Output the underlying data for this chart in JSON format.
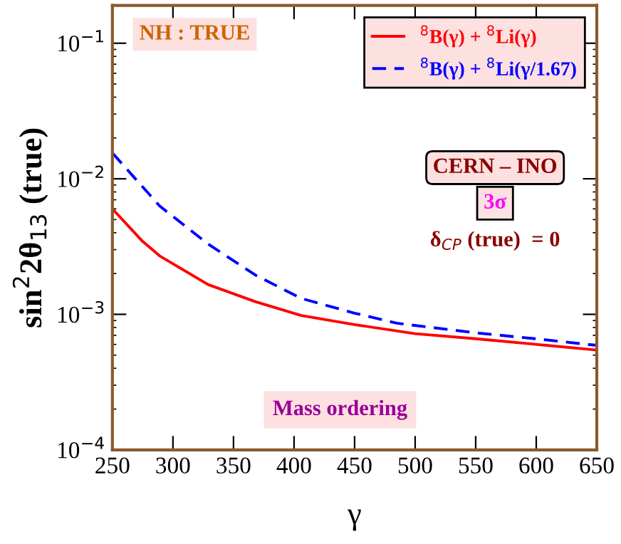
{
  "chart_data": {
    "type": "line",
    "xlabel": "γ",
    "ylabel": "sin$^{2}$2θ$_{13}$ (true)",
    "log": "y",
    "xlim": [
      250,
      650
    ],
    "xticks": [
      250,
      300,
      350,
      400,
      450,
      500,
      550,
      600,
      650
    ],
    "ylim": [
      0.0001,
      0.19
    ],
    "yticks": [
      {
        "value": 0.0001,
        "label": "10$^{−4}$"
      },
      {
        "value": 0.001,
        "label": "10$^{−3}$"
      },
      {
        "value": 0.01,
        "label": "10$^{−2}$"
      },
      {
        "value": 0.1,
        "label": "10$^{−1}$"
      }
    ],
    "grid": false,
    "legend": "top right",
    "series": [
      {
        "name": "$^{8}$B(γ) + $^{8}$Li(γ)",
        "color": "#ff0000",
        "line_style": "solid",
        "x": [
          250,
          275,
          289,
          329,
          368,
          406,
          450,
          500,
          550,
          600,
          650
        ],
        "values": [
          0.006,
          0.00345,
          0.0027,
          0.00166,
          0.00124,
          0.00098,
          0.00084,
          0.00072,
          0.00066,
          0.0006,
          0.000545
        ]
      },
      {
        "name": "$^{8}$B(γ) + $^{8}$Li(γ/1.67)",
        "color": "#0000ff",
        "line_style": "dashed",
        "x": [
          250,
          289,
          329,
          368,
          406,
          450,
          485,
          550,
          600,
          650
        ],
        "values": [
          0.0155,
          0.0063,
          0.0033,
          0.00195,
          0.00131,
          0.00102,
          0.00086,
          0.00073,
          0.00066,
          0.00059
        ]
      }
    ],
    "annotations": [
      "NH : TRUE",
      "CERN – INO",
      "3σ",
      "δ$_{CP}$ (true)  = 0",
      "Mass ordering"
    ]
  }
}
